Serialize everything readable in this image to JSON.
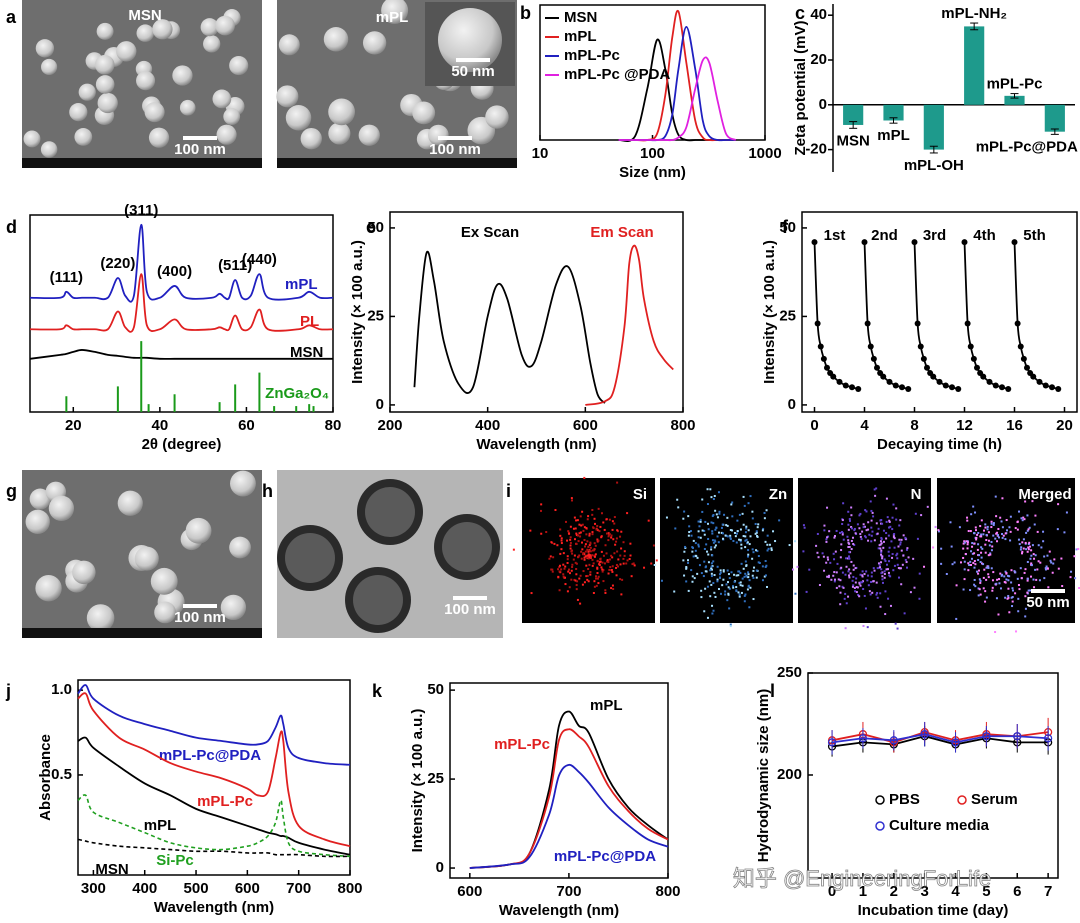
{
  "chart_data": [
    {
      "panel": "b",
      "type": "line",
      "frame": true,
      "smooth": true,
      "x_scale": "log",
      "xlabel": "Size (nm)",
      "xlim": [
        10,
        1000
      ],
      "xticks": [
        10,
        100,
        1000
      ],
      "ylim": [
        0,
        1.05
      ],
      "legend": "upper left",
      "x": [
        50,
        70,
        90,
        110,
        130,
        150,
        170,
        200,
        240,
        280,
        320,
        380,
        450,
        550
      ],
      "series": [
        {
          "name": "MSN",
          "color": "#000000",
          "values": [
            0,
            0.03,
            0.4,
            0.78,
            0.55,
            0.2,
            0.04,
            0,
            0,
            0,
            0,
            0,
            0,
            0
          ]
        },
        {
          "name": "mPL",
          "color": "#e02020",
          "values": [
            0,
            0,
            0,
            0.05,
            0.35,
            0.8,
            1.0,
            0.6,
            0.15,
            0.02,
            0,
            0,
            0,
            0
          ]
        },
        {
          "name": "mPL-Pc",
          "color": "#2020c0",
          "values": [
            0,
            0,
            0,
            0,
            0.03,
            0.2,
            0.55,
            0.88,
            0.55,
            0.15,
            0.03,
            0,
            0,
            0
          ]
        },
        {
          "name": "mPL-Pc @PDA",
          "color": "#e020e0",
          "values": [
            0,
            0,
            0,
            0,
            0,
            0,
            0.02,
            0.1,
            0.4,
            0.62,
            0.6,
            0.3,
            0.05,
            0
          ]
        }
      ]
    },
    {
      "panel": "c",
      "type": "bar",
      "frame": false,
      "ylabel": "Zeta potential (mV)",
      "ylim": [
        -30,
        45
      ],
      "yticks": [
        -20,
        0,
        20,
        40
      ],
      "color": "#1e9a8c",
      "categories": [
        "MSN",
        "mPL",
        "mPL-OH",
        "mPL-NH₂",
        "mPL-Pc",
        "mPL-Pc@PDA"
      ],
      "values": [
        -9,
        -7,
        -20,
        35,
        4,
        -12
      ],
      "errors": [
        1.5,
        1.2,
        1.5,
        1.5,
        1,
        1.2
      ]
    },
    {
      "panel": "d",
      "type": "line",
      "frame": true,
      "smooth": true,
      "xlabel": "2θ (degree)",
      "xlim": [
        10,
        80
      ],
      "xticks": [
        20,
        40,
        60,
        80
      ],
      "ylim": [
        0,
        100
      ],
      "x": [
        10,
        17,
        18.4,
        20,
        22,
        25,
        28,
        30.3,
        32,
        34,
        35.7,
        37,
        40,
        43.4,
        46,
        52,
        53.8,
        55,
        56,
        57.4,
        59,
        61,
        63,
        65,
        72,
        74.5,
        77,
        80
      ],
      "series": [
        {
          "name": "mPL",
          "color": "#2020c0",
          "values": [
            58,
            58,
            61,
            58,
            58,
            58,
            58,
            68,
            59,
            59,
            95,
            61,
            58,
            64,
            58,
            58,
            60,
            58,
            58,
            67,
            58,
            59,
            70,
            58,
            58,
            61,
            58,
            58
          ]
        },
        {
          "name": "PL",
          "color": "#e02020",
          "values": [
            42,
            42,
            44,
            42,
            42,
            42,
            42,
            51,
            43,
            43,
            70,
            44,
            42,
            47,
            42,
            42,
            43,
            42,
            42,
            49,
            42,
            43,
            52,
            42,
            42,
            44,
            42,
            42
          ]
        },
        {
          "name": "MSN",
          "color": "#000000",
          "values": [
            27,
            29,
            29.5,
            30.5,
            31.5,
            30.5,
            29,
            28.5,
            28,
            27.5,
            27.5,
            27.5,
            27,
            27,
            27,
            27,
            27,
            27,
            27,
            27,
            27,
            27,
            27,
            27,
            27,
            27,
            27,
            27
          ]
        }
      ],
      "reference": {
        "name": "ZnGa₂O₄",
        "color": "#1a9a1a",
        "x": [
          18.4,
          30.3,
          35.7,
          37.4,
          43.4,
          53.8,
          57.4,
          63.0,
          66.4,
          71.5,
          74.5,
          75.5
        ],
        "values": [
          8,
          13,
          36,
          4,
          9,
          5,
          14,
          20,
          3,
          3,
          4,
          3
        ]
      },
      "peak_labels": [
        {
          "text": "(111)",
          "x": 18.4
        },
        {
          "text": "(220)",
          "x": 30.3
        },
        {
          "text": "(311)",
          "x": 35.7
        },
        {
          "text": "(400)",
          "x": 43.4
        },
        {
          "text": "(511)",
          "x": 57.4
        },
        {
          "text": "(440)",
          "x": 63.0
        }
      ]
    },
    {
      "panel": "e",
      "type": "line",
      "frame": true,
      "smooth": true,
      "xlabel": "Wavelength (nm)",
      "ylabel": "Intensity (× 100 a.u.)",
      "xlim": [
        200,
        800
      ],
      "xticks": [
        200,
        400,
        600,
        800
      ],
      "ylim": [
        -2,
        54.5
      ],
      "yticks": [
        0,
        25,
        50
      ],
      "series": [
        {
          "name": "Ex Scan",
          "color": "#000000",
          "x": [
            250,
            260,
            275,
            290,
            310,
            340,
            370,
            400,
            420,
            440,
            470,
            490,
            510,
            540,
            565,
            590,
            610,
            625,
            640
          ],
          "values": [
            5,
            25,
            43,
            35,
            18,
            6,
            5,
            25,
            34,
            30,
            14,
            11,
            18,
            34,
            39,
            28,
            12,
            3,
            0.5
          ]
        },
        {
          "name": "Em Scan",
          "color": "#e02020",
          "x": [
            600,
            640,
            660,
            680,
            690,
            700,
            710,
            720,
            740,
            760,
            780
          ],
          "values": [
            0,
            1,
            5,
            22,
            40,
            45,
            41,
            30,
            18,
            13,
            10
          ]
        }
      ]
    },
    {
      "panel": "f",
      "type": "line",
      "frame": true,
      "smooth": true,
      "xlabel": "Decaying time (h)",
      "ylabel": "Intensity (× 100 a.u.)",
      "xlim": [
        -1,
        21
      ],
      "xticks": [
        0,
        4,
        8,
        12,
        16,
        20
      ],
      "ylim": [
        -2,
        54.5
      ],
      "yticks": [
        0,
        25,
        50
      ],
      "series": [
        {
          "name": "1st",
          "color": "#000000",
          "marker": "dot",
          "x": [
            0,
            0.25,
            0.5,
            0.75,
            1,
            1.25,
            1.5,
            2,
            2.5,
            3,
            3.5
          ],
          "values": [
            46,
            23,
            16.5,
            13,
            10.5,
            9,
            8,
            6.5,
            5.5,
            5,
            4.5
          ]
        },
        {
          "name": "2nd",
          "color": "#000000",
          "marker": "dot",
          "x": [
            4,
            4.25,
            4.5,
            4.75,
            5,
            5.25,
            5.5,
            6,
            6.5,
            7,
            7.5
          ],
          "values": [
            46,
            23,
            16.5,
            13,
            10.5,
            9,
            8,
            6.5,
            5.5,
            5,
            4.5
          ]
        },
        {
          "name": "3rd",
          "color": "#000000",
          "marker": "dot",
          "x": [
            8,
            8.25,
            8.5,
            8.75,
            9,
            9.25,
            9.5,
            10,
            10.5,
            11,
            11.5
          ],
          "values": [
            46,
            23,
            16.5,
            13,
            10.5,
            9,
            8,
            6.5,
            5.5,
            5,
            4.5
          ]
        },
        {
          "name": "4th",
          "color": "#000000",
          "marker": "dot",
          "x": [
            12,
            12.25,
            12.5,
            12.75,
            13,
            13.25,
            13.5,
            14,
            14.5,
            15,
            15.5
          ],
          "values": [
            46,
            23,
            16.5,
            13,
            10.5,
            9,
            8,
            6.5,
            5.5,
            5,
            4.5
          ]
        },
        {
          "name": "5th",
          "color": "#000000",
          "marker": "dot",
          "x": [
            16,
            16.25,
            16.5,
            16.75,
            17,
            17.25,
            17.5,
            18,
            18.5,
            19,
            19.5
          ],
          "values": [
            46,
            23,
            16.5,
            13,
            10.5,
            9,
            8,
            6.5,
            5.5,
            5,
            4.5
          ]
        }
      ]
    },
    {
      "panel": "j",
      "type": "line",
      "frame": true,
      "smooth": true,
      "xlabel": "Wavelength (nm)",
      "ylabel": "Absorbance",
      "xlim": [
        270,
        800
      ],
      "xticks": [
        300,
        400,
        500,
        600,
        700,
        800
      ],
      "ylim": [
        -0.09,
        1.06
      ],
      "yticks": [
        0.5,
        {
          "value": 1,
          "label": "1.0"
        }
      ],
      "x": [
        270,
        285,
        300,
        350,
        400,
        450,
        500,
        550,
        600,
        620,
        640,
        655,
        665,
        670,
        680,
        700,
        750,
        800
      ],
      "series": [
        {
          "name": "mPL-Pc@PDA",
          "color": "#2020c0",
          "values": [
            0.98,
            1.03,
            0.95,
            0.85,
            0.8,
            0.76,
            0.72,
            0.7,
            0.68,
            0.68,
            0.7,
            0.78,
            0.85,
            0.8,
            0.66,
            0.6,
            0.57,
            0.56
          ]
        },
        {
          "name": "mPL-Pc",
          "color": "#e02020",
          "values": [
            0.95,
            0.98,
            0.88,
            0.72,
            0.65,
            0.57,
            0.52,
            0.48,
            0.42,
            0.38,
            0.4,
            0.6,
            0.75,
            0.7,
            0.4,
            0.2,
            0.12,
            0.08
          ]
        },
        {
          "name": "mPL",
          "color": "#000000",
          "values": [
            0.7,
            0.72,
            0.66,
            0.55,
            0.45,
            0.38,
            0.3,
            0.25,
            0.2,
            0.18,
            0.16,
            0.15,
            0.14,
            0.14,
            0.13,
            0.1,
            0.06,
            0.03
          ]
        },
        {
          "name": "Si-Pc",
          "color": "#20a020",
          "dash": true,
          "values": [
            0.35,
            0.38,
            0.28,
            0.22,
            0.16,
            0.1,
            0.07,
            0.06,
            0.08,
            0.1,
            0.14,
            0.22,
            0.35,
            0.25,
            0.1,
            0.05,
            0.03,
            0.02
          ]
        },
        {
          "name": "MSN",
          "color": "#000000",
          "dash": true,
          "values": [
            0.12,
            0.11,
            0.1,
            0.08,
            0.07,
            0.06,
            0.05,
            0.05,
            0.04,
            0.04,
            0.04,
            0.03,
            0.03,
            0.03,
            0.03,
            0.03,
            0.02,
            0.02
          ]
        }
      ]
    },
    {
      "panel": "k",
      "type": "line",
      "frame": true,
      "smooth": true,
      "xlabel": "Wavelength (nm)",
      "ylabel": "Intensity (× 100 a.u.)",
      "xlim": [
        580,
        800
      ],
      "xticks": [
        600,
        700,
        800
      ],
      "ylim": [
        -2.8,
        52
      ],
      "yticks": [
        0,
        25,
        50
      ],
      "x": [
        600,
        640,
        660,
        680,
        690,
        700,
        710,
        720,
        740,
        760,
        780,
        800
      ],
      "series": [
        {
          "name": "mPL",
          "color": "#000000",
          "values": [
            0,
            1,
            4,
            22,
            40,
            44,
            40,
            38,
            25,
            17,
            12,
            8
          ]
        },
        {
          "name": "mPL-Pc",
          "color": "#e02020",
          "values": [
            0,
            1,
            4,
            20,
            36,
            39,
            37,
            34,
            23,
            16,
            11,
            8
          ]
        },
        {
          "name": "mPL-Pc@PDA",
          "color": "#2020c0",
          "values": [
            0,
            1,
            3,
            15,
            26,
            29,
            27,
            24,
            17,
            12,
            8,
            6
          ]
        }
      ]
    },
    {
      "panel": "l",
      "type": "line",
      "frame": true,
      "smooth": false,
      "xlabel": "Incubation time (day)",
      "ylabel": "Hydrodynamic size (nm)",
      "xlim": [
        -0.78,
        7.32
      ],
      "xticks": [
        0,
        1,
        2,
        3,
        4,
        5,
        6,
        7
      ],
      "ylim": [
        149.5,
        250
      ],
      "yticks": [
        200,
        250
      ],
      "legend": "lower left",
      "x": [
        0,
        1,
        2,
        3,
        4,
        5,
        6,
        7
      ],
      "series": [
        {
          "name": "PBS",
          "color": "#000000",
          "marker": "open-circle",
          "values": [
            214,
            216,
            215,
            219,
            215,
            218,
            216,
            216
          ],
          "errors": [
            5,
            5,
            4,
            5,
            4,
            5,
            5,
            6
          ]
        },
        {
          "name": "Serum",
          "color": "#e02020",
          "marker": "open-circle",
          "values": [
            217,
            220,
            216,
            221,
            217,
            220,
            219,
            221
          ],
          "errors": [
            5,
            6,
            5,
            5,
            5,
            6,
            6,
            7
          ]
        },
        {
          "name": "Culture media",
          "color": "#3030d0",
          "marker": "open-circle",
          "values": [
            216,
            218,
            217,
            220,
            216,
            219,
            219,
            218
          ],
          "errors": [
            6,
            5,
            5,
            6,
            5,
            5,
            6,
            6
          ]
        }
      ]
    }
  ],
  "images": [
    {
      "panel": "a",
      "tiles": [
        {
          "labels": [
            "MSN",
            "100 nm"
          ]
        },
        {
          "labels": [
            "mPL",
            "50 nm",
            "100 nm"
          ]
        }
      ]
    },
    {
      "panel": "g",
      "tiles": [
        {
          "labels": [
            "100 nm"
          ]
        }
      ]
    },
    {
      "panel": "h",
      "tiles": [
        {
          "labels": [
            "100 nm"
          ]
        }
      ]
    },
    {
      "panel": "i",
      "tiles": [
        {
          "labels": [
            "Si"
          ]
        },
        {
          "labels": [
            "Zn"
          ]
        },
        {
          "labels": [
            "N"
          ]
        },
        {
          "labels": [
            "Merged",
            "50 nm"
          ]
        }
      ]
    }
  ],
  "watermark": "知乎 @EngineeringForLife"
}
